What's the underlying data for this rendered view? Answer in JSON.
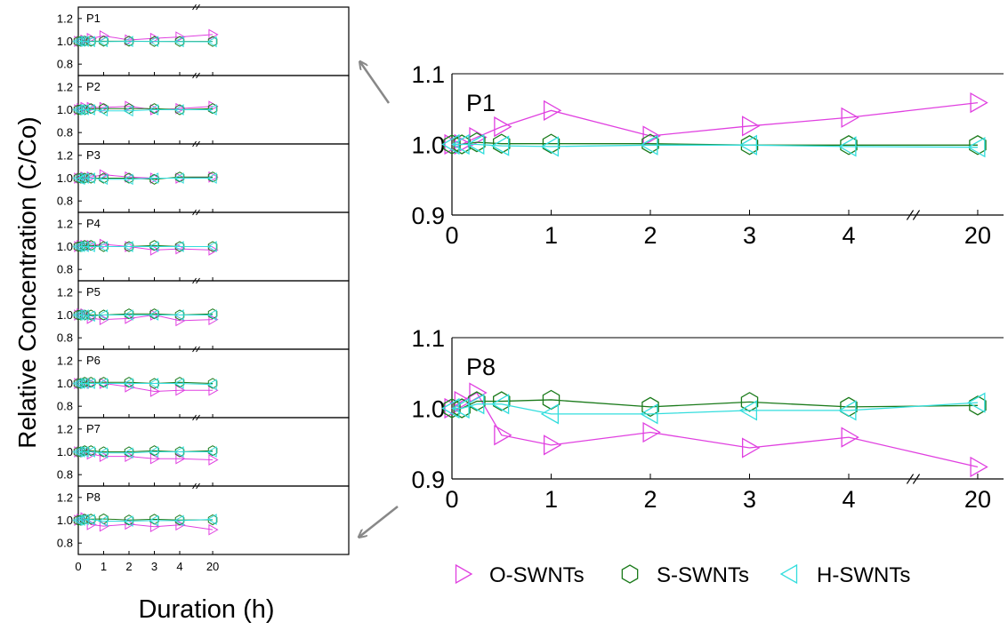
{
  "figure": {
    "ylabel": "Relative Concentration (C/Co)",
    "xlabel": "Duration (h)"
  },
  "colors": {
    "O-SWNTs": "#e040e0",
    "S-SWNTs": "#1a7a1a",
    "H-SWNTs": "#33dddd",
    "arrow": "#888888"
  },
  "legend": {
    "placement": "bottom-right",
    "items": [
      {
        "name": "O-SWNTs",
        "marker": "triangle-right"
      },
      {
        "name": "S-SWNTs",
        "marker": "hexagon"
      },
      {
        "name": "H-SWNTs",
        "marker": "triangle-left"
      }
    ]
  },
  "chart_data": [
    {
      "type": "line",
      "panel": "P1",
      "label": "P1",
      "x": [
        0,
        0.1,
        0.25,
        0.5,
        1,
        2,
        3,
        4,
        20
      ],
      "xticks": [
        "0",
        "1",
        "2",
        "3",
        "4",
        "20"
      ],
      "yticks_small": [
        "0.8",
        "1.0",
        "1.2"
      ],
      "yticks_large": [
        "0.9",
        "1.0",
        "1.1"
      ],
      "axis_break": "between 4 and 20",
      "series": [
        {
          "name": "O-SWNTs",
          "values": [
            1.0,
            1.0,
            1.01,
            1.025,
            1.048,
            1.012,
            1.026,
            1.038,
            1.059
          ]
        },
        {
          "name": "S-SWNTs",
          "values": [
            1.0,
            1.0,
            1.003,
            1.001,
            1.001,
            1.001,
            0.999,
            0.999,
            0.999
          ]
        },
        {
          "name": "H-SWNTs",
          "values": [
            1.0,
            1.0,
            1.0,
            0.998,
            0.997,
            0.999,
            0.999,
            0.997,
            0.996
          ]
        }
      ]
    },
    {
      "type": "line",
      "panel": "P2",
      "label": "P2",
      "x": [
        0,
        0.1,
        0.25,
        0.5,
        1,
        2,
        3,
        4,
        20
      ],
      "series": [
        {
          "name": "O-SWNTs",
          "values": [
            1.0,
            1.01,
            1.02,
            1.02,
            1.02,
            1.03,
            1.0,
            1.01,
            1.03
          ]
        },
        {
          "name": "S-SWNTs",
          "values": [
            1.0,
            1.0,
            1.0,
            1.01,
            1.01,
            1.01,
            1.01,
            1.0,
            1.01
          ]
        },
        {
          "name": "H-SWNTs",
          "values": [
            1.0,
            1.0,
            1.0,
            1.0,
            0.99,
            0.99,
            1.0,
            1.0,
            1.0
          ]
        }
      ]
    },
    {
      "type": "line",
      "panel": "P3",
      "label": "P3",
      "x": [
        0,
        0.1,
        0.25,
        0.5,
        1,
        2,
        3,
        4,
        20
      ],
      "series": [
        {
          "name": "O-SWNTs",
          "values": [
            1.0,
            1.0,
            1.01,
            1.01,
            1.03,
            1.01,
            1.0,
            1.0,
            1.01
          ]
        },
        {
          "name": "S-SWNTs",
          "values": [
            1.0,
            1.0,
            1.0,
            1.0,
            1.0,
            1.0,
            0.99,
            1.01,
            1.01
          ]
        },
        {
          "name": "H-SWNTs",
          "values": [
            1.0,
            0.99,
            1.0,
            1.0,
            0.99,
            0.99,
            1.0,
            1.0,
            1.0
          ]
        }
      ]
    },
    {
      "type": "line",
      "panel": "P4",
      "label": "P4",
      "x": [
        0,
        0.1,
        0.25,
        0.5,
        1,
        2,
        3,
        4,
        20
      ],
      "series": [
        {
          "name": "O-SWNTs",
          "values": [
            1.0,
            1.01,
            1.01,
            1.01,
            1.02,
            1.0,
            0.97,
            0.98,
            0.97
          ]
        },
        {
          "name": "S-SWNTs",
          "values": [
            1.0,
            1.0,
            1.01,
            1.01,
            1.0,
            1.0,
            1.01,
            1.0,
            1.0
          ]
        },
        {
          "name": "H-SWNTs",
          "values": [
            1.0,
            1.0,
            1.0,
            1.0,
            1.0,
            1.0,
            1.0,
            1.0,
            1.0
          ]
        }
      ]
    },
    {
      "type": "line",
      "panel": "P5",
      "label": "P5",
      "x": [
        0,
        0.1,
        0.25,
        0.5,
        1,
        2,
        3,
        4,
        20
      ],
      "series": [
        {
          "name": "O-SWNTs",
          "values": [
            1.0,
            1.01,
            1.01,
            0.97,
            0.96,
            0.97,
            1.0,
            0.95,
            0.96
          ]
        },
        {
          "name": "S-SWNTs",
          "values": [
            1.0,
            1.0,
            1.0,
            1.0,
            1.0,
            1.01,
            1.01,
            1.0,
            1.01
          ]
        },
        {
          "name": "H-SWNTs",
          "values": [
            1.0,
            1.0,
            1.0,
            0.99,
            1.0,
            1.0,
            1.0,
            1.0,
            1.0
          ]
        }
      ]
    },
    {
      "type": "line",
      "panel": "P6",
      "label": "P6",
      "x": [
        0,
        0.1,
        0.25,
        0.5,
        1,
        2,
        3,
        4,
        20
      ],
      "series": [
        {
          "name": "O-SWNTs",
          "values": [
            1.0,
            1.0,
            1.0,
            1.0,
            1.0,
            0.97,
            0.93,
            0.94,
            0.94
          ]
        },
        {
          "name": "S-SWNTs",
          "values": [
            1.0,
            1.0,
            1.01,
            1.01,
            1.01,
            1.01,
            1.0,
            1.01,
            1.0
          ]
        },
        {
          "name": "H-SWNTs",
          "values": [
            1.0,
            1.0,
            1.0,
            1.0,
            1.0,
            1.0,
            1.0,
            1.0,
            0.99
          ]
        }
      ]
    },
    {
      "type": "line",
      "panel": "P7",
      "label": "P7",
      "x": [
        0,
        0.1,
        0.25,
        0.5,
        1,
        2,
        3,
        4,
        20
      ],
      "series": [
        {
          "name": "O-SWNTs",
          "values": [
            1.0,
            1.0,
            1.0,
            0.98,
            0.96,
            0.96,
            0.94,
            0.94,
            0.93
          ]
        },
        {
          "name": "S-SWNTs",
          "values": [
            1.0,
            1.0,
            1.01,
            1.01,
            1.0,
            1.0,
            1.01,
            1.0,
            1.01
          ]
        },
        {
          "name": "H-SWNTs",
          "values": [
            1.0,
            1.0,
            1.0,
            1.0,
            0.99,
            0.99,
            1.0,
            1.0,
            1.0
          ]
        }
      ]
    },
    {
      "type": "line",
      "panel": "P8",
      "label": "P8",
      "x": [
        0,
        0.1,
        0.25,
        0.5,
        1,
        2,
        3,
        4,
        20
      ],
      "series": [
        {
          "name": "O-SWNTs",
          "values": [
            1.0,
            1.01,
            1.022,
            0.962,
            0.948,
            0.966,
            0.944,
            0.959,
            0.917
          ]
        },
        {
          "name": "S-SWNTs",
          "values": [
            1.0,
            1.0,
            1.01,
            1.01,
            1.012,
            1.002,
            1.009,
            1.002,
            1.004
          ]
        },
        {
          "name": "H-SWNTs",
          "values": [
            1.0,
            1.0,
            1.006,
            1.006,
            0.992,
            0.992,
            0.997,
            0.997,
            1.008
          ]
        }
      ]
    }
  ]
}
